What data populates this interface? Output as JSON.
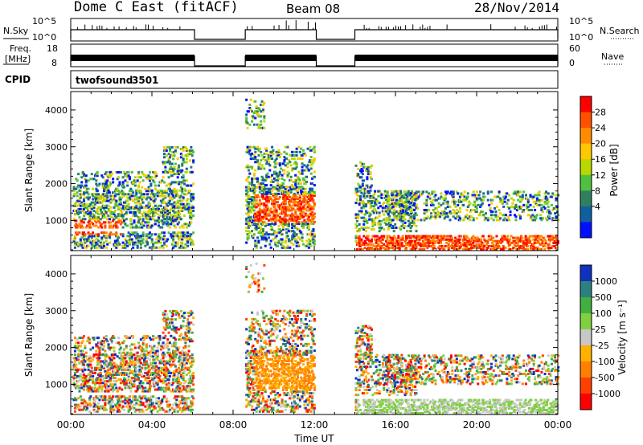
{
  "header": {
    "station": "Dome C East (fitACF)",
    "beam": "Beam 08",
    "date": "28/Nov/2014"
  },
  "chart_data": [
    {
      "type": "line",
      "panel": "nsky-nsearch",
      "left_label": "N.Sky",
      "left_ticks": [
        "10^5",
        "10^0"
      ],
      "right_label": "N.Search",
      "right_ticks": [
        "10^5",
        "10^0"
      ],
      "x_hours": [
        0,
        6.1,
        8.6,
        12.1,
        14.0,
        24.0
      ],
      "active_intervals_hours": [
        [
          0,
          6.1
        ],
        [
          8.6,
          12.1
        ],
        [
          14.0,
          24.0
        ]
      ]
    },
    {
      "type": "line",
      "panel": "freq-nave",
      "left_label": "Freq.",
      "left_unit": "[MHz]",
      "left_ticks": [
        "18",
        "8"
      ],
      "right_label": "Nave",
      "right_ticks": [
        "60",
        "0"
      ],
      "active_intervals_hours": [
        [
          0,
          6.1
        ],
        [
          8.6,
          12.1
        ],
        [
          14.0,
          24.0
        ]
      ]
    },
    {
      "type": "heatmap",
      "panel": "power",
      "ylabel": "Slant Range [km]",
      "yticks": [
        1000,
        2000,
        3000,
        4000
      ],
      "ylim": [
        180,
        4500
      ],
      "xlim": [
        0,
        24
      ],
      "colorbar_label": "Power [dB]",
      "colorbar_ticks": [
        "28",
        "24",
        "20",
        "16",
        "12",
        "8",
        "4"
      ],
      "colorbar_colors": [
        "#ff0000",
        "#ff5000",
        "#ff8c00",
        "#ffc800",
        "#b8d800",
        "#50c040",
        "#308060",
        "#1060a0",
        "#0010ff"
      ]
    },
    {
      "type": "heatmap",
      "panel": "velocity",
      "ylabel": "Slant Range [km]",
      "yticks": [
        1000,
        2000,
        3000,
        4000
      ],
      "ylim": [
        180,
        4500
      ],
      "xlim": [
        0,
        24
      ],
      "colorbar_label": "Velocity [m s⁻¹]",
      "colorbar_ticks": [
        "1000",
        "500",
        "100",
        "25",
        "-25",
        "-100",
        "-500",
        "-1000"
      ],
      "colorbar_colors": [
        "#1030c0",
        "#2c8080",
        "#40b040",
        "#80d040",
        "#c8c8c8",
        "#ffb000",
        "#ff8000",
        "#ff4000",
        "#ff0000"
      ]
    }
  ],
  "cpid": {
    "label": "CPID",
    "name": "twofsound",
    "id": "3501"
  },
  "xaxis": {
    "ticks": [
      "00:00",
      "04:00",
      "08:00",
      "12:00",
      "16:00",
      "20:00",
      "00:00"
    ],
    "label": "Time UT"
  }
}
